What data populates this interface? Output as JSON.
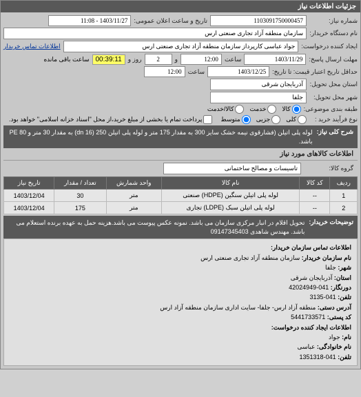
{
  "header": {
    "title": "جزئیات اطلاعات نیاز"
  },
  "form": {
    "need_number_label": "شماره نیاز:",
    "need_number": "1103091750000457",
    "public_datetime_label": "تاریخ و ساعت اعلان عمومی:",
    "public_datetime": "1403/11/27 - 11:08",
    "org_name_label": "نام دستگاه خریدار:",
    "org_name": "سازمان منطقه آزاد تجاری صنعتی ارس",
    "creator_label": "ایجاد کننده درخواست:",
    "creator": "جواد عباسی کارپرداز سازمان منطقه آزاد تجاری صنعتی ارس",
    "contact_link": "اطلاعات تماس خریدار",
    "deadline_label": "مهلت ارسال پاسخ:",
    "deadline_to_label": "تا تاریخ:",
    "deadline_date": "1403/11/29",
    "deadline_time_label": "ساعت",
    "deadline_time": "12:00",
    "days_and": "و",
    "days_count": "2",
    "days_label": "روز و",
    "remaining_time": "00:39:11",
    "remaining_label": "ساعت باقی مانده",
    "price_deadline_label": "حداقل تاریخ اعتبار قیمت: تا تاریخ:",
    "price_deadline_date": "1403/12/25",
    "price_time_label": "ساعت",
    "price_time": "12:00",
    "delivery_province_label": "استان محل تحویل:",
    "delivery_province": "آذربایجان شرقی",
    "delivery_city_label": "شهر محل تحویل:",
    "delivery_city": "جلفا",
    "budget_type_label": "طبقه بندی موضوعی:",
    "budget_options": [
      "کالا",
      "خدمت",
      "کالا/خدمت"
    ],
    "purchase_type_label": "نوع فرآیند خرید :",
    "purchase_options": [
      "کلی",
      "جزیی",
      "متوسط"
    ],
    "payment_note": "پرداخت تمام یا بخشی از مبلغ خرید،از محل \"اسناد خزانه اسلامی\" خواهد بود.",
    "desc_label": "شرح کلی نیاز:",
    "desc_text": "لوله پلی اتیلن (فشارقوی نیمه خشک سایز 300 به مقدار 175 متر و لوله پلی اتیلن 250 (dn 16) به مقدار 30 متر و PE 80 باشد."
  },
  "items": {
    "section_title": "اطلاعات کالاهای مورد نیاز",
    "group_label": "گروه کالا:",
    "group_value": "تاسیسات و مصالح ساختمانی",
    "columns": [
      "ردیف",
      "کد کالا",
      "نام کالا",
      "واحد شمارش",
      "تعداد / مقدار",
      "تاریخ نیاز"
    ],
    "rows": [
      [
        "1",
        "--",
        "لوله پلی اتیلن سنگین (HDPE) صنعتی",
        "متر",
        "30",
        "1403/12/04"
      ],
      [
        "2",
        "--",
        "لوله پلی اتیلن سبک (LDPE) تجاری",
        "متر",
        "175",
        "1403/12/04"
      ]
    ]
  },
  "buyer_notes": {
    "label": "توضیحات خریدار:",
    "text": "تحویل اقلام در انبار مرکزی سازمان می باشد. نمونه عکس پیوست می باشد.هزینه حمل به عهده برنده استعلام می باشد. مهندس شاهدی 09147345403"
  },
  "contact": {
    "title": "اطلاعات تماس سازمان خریدار:",
    "org_label": "نام سازمان خریدار:",
    "org": "سازمان منطقه آزاد تجاری صنعتی ارس",
    "city_label": "شهر:",
    "city": "جلفا",
    "province_label": "استان:",
    "province": "آذربایجان شرقی",
    "fax_label": "دورنگار:",
    "fax": "041-42024949",
    "phone_label": "تلفن:",
    "phone": "041-3135",
    "address_label": "آدرس دستی:",
    "address": "منطقه آزاد ارس- جلفا- سایت اداری سازمان منطقه آزاد ارس",
    "postcode_label": "کد پستی:",
    "postcode": "5441733571",
    "creator_section": "اطلاعات ایجاد کننده درخواست:",
    "name_label": "نام:",
    "name": "جواد",
    "lastname_label": "نام خانوادگی:",
    "lastname": "عباسی",
    "creator_phone_label": "تلفن:",
    "creator_phone": "041-1351318"
  }
}
